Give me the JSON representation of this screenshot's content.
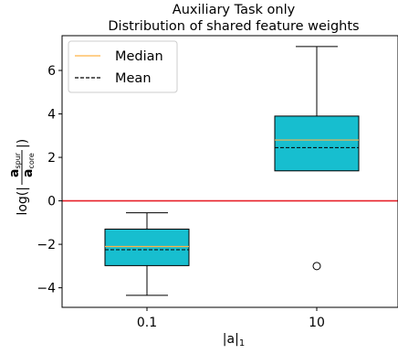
{
  "chart_data": {
    "type": "box",
    "title_line1": "Auxiliary Task only",
    "title_line2": "Distribution of shared feature weights",
    "xlabel": "|a|",
    "xlabel_sub": "1",
    "ylabel_prefix": "log(|",
    "ylabel_num": "a",
    "ylabel_num_sub": "spur",
    "ylabel_den": "a",
    "ylabel_den_sub": "core",
    "ylabel_suffix": "|)",
    "categories": [
      "0.1",
      "10"
    ],
    "ylim": [
      -4.9,
      7.6
    ],
    "yticks": [
      -4,
      -2,
      0,
      2,
      4,
      6
    ],
    "ytick_labels": [
      "−4",
      "−2",
      "0",
      "2",
      "4",
      "6"
    ],
    "boxes": [
      {
        "category": "0.1",
        "whisker_low": -4.35,
        "q1": -2.98,
        "median": -2.1,
        "mean": -2.25,
        "q3": -1.3,
        "whisker_high": -0.55,
        "outliers": []
      },
      {
        "category": "10",
        "whisker_low": -3.0,
        "q1": 1.38,
        "median": 2.8,
        "mean": 2.45,
        "q3": 3.9,
        "whisker_high": 7.1,
        "outliers": [
          -3.0
        ]
      }
    ],
    "reference_line": {
      "y": 0,
      "color": "#e8212a"
    },
    "box_color": "#17becf",
    "median_color": "#ffb347",
    "mean_color": "#000000",
    "legend": {
      "position": "top-left",
      "entries": [
        {
          "label": "Median",
          "style": "solid",
          "color": "#ffb347"
        },
        {
          "label": "Mean",
          "style": "dashed",
          "color": "#000000"
        }
      ]
    }
  }
}
